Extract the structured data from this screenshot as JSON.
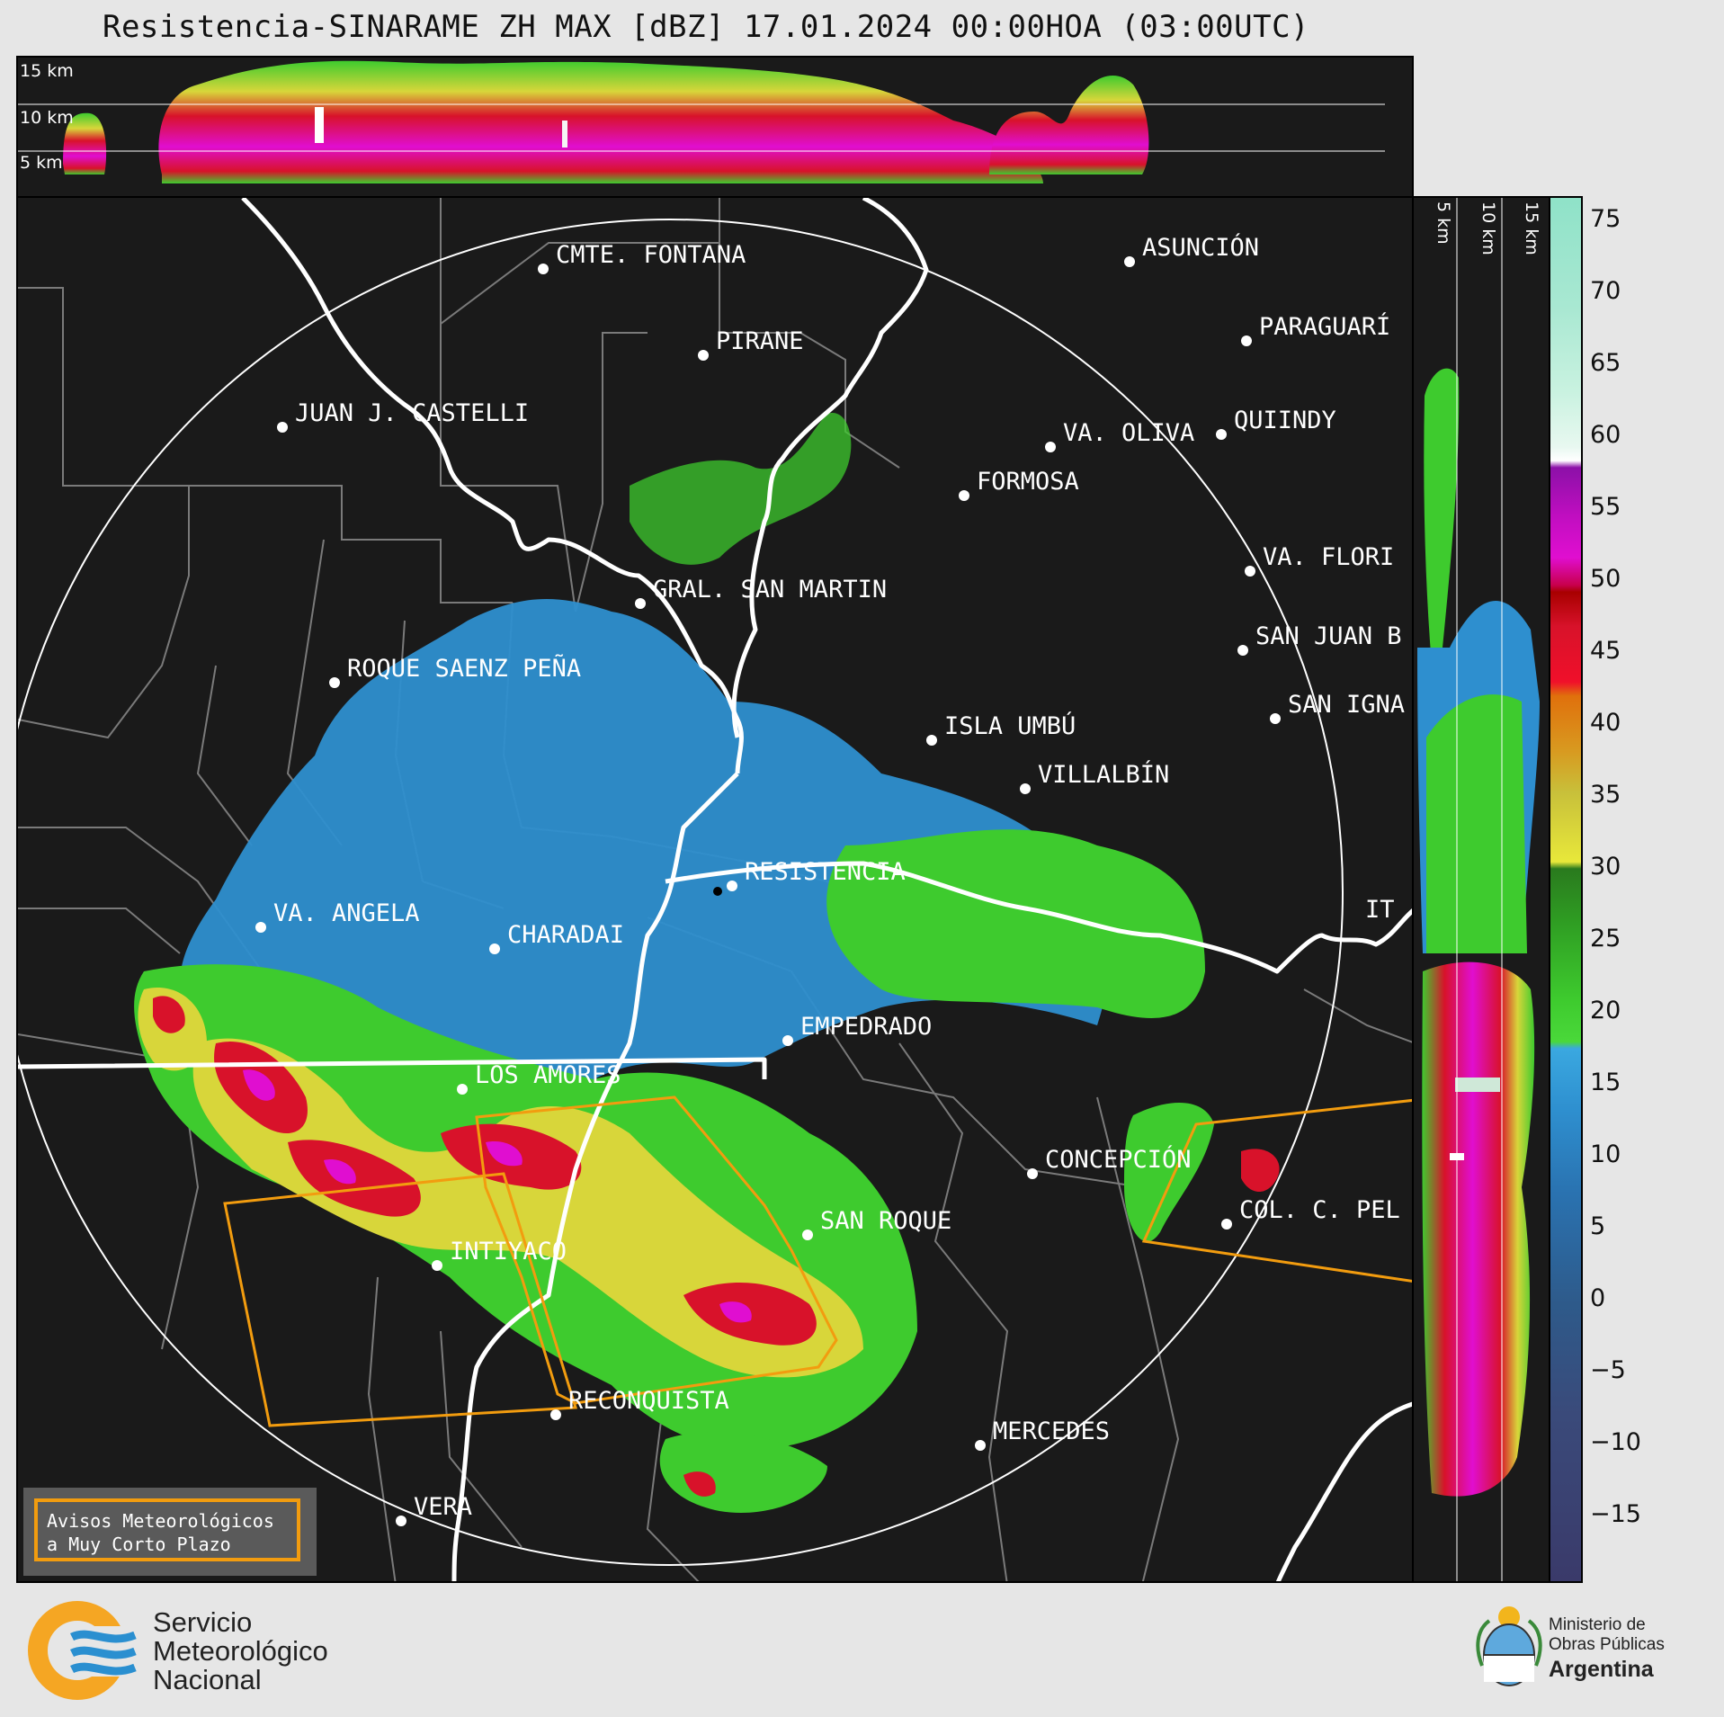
{
  "title": "Resistencia-SINARAME ZH MAX [dBZ] 17.01.2024 00:00HOA (03:00UTC)",
  "top_profile": {
    "height_labels": [
      "15 km",
      "10 km",
      "5 km"
    ]
  },
  "side_profile": {
    "height_labels": [
      "5 km",
      "10 km",
      "15 km"
    ]
  },
  "colorbar": {
    "ticks": [
      "75",
      "70",
      "65",
      "60",
      "55",
      "50",
      "45",
      "40",
      "35",
      "30",
      "25",
      "20",
      "15",
      "10",
      "5",
      "0",
      "−5",
      "−10",
      "−15"
    ]
  },
  "cities": [
    {
      "name": "CMTE. FONTANA",
      "emphasis": false
    },
    {
      "name": "ASUNCIÓN",
      "emphasis": false
    },
    {
      "name": "PARAGUARÍ",
      "emphasis": false
    },
    {
      "name": "PIRANE",
      "emphasis": false
    },
    {
      "name": "JUAN J. CASTELLI",
      "emphasis": false
    },
    {
      "name": "VA. OLIVA",
      "emphasis": false
    },
    {
      "name": "QUIINDY",
      "emphasis": false
    },
    {
      "name": "FORMOSA",
      "emphasis": false
    },
    {
      "name": "VA. FLORI",
      "emphasis": false
    },
    {
      "name": "GRAL. SAN MARTIN",
      "emphasis": false
    },
    {
      "name": "SAN JUAN B",
      "emphasis": false
    },
    {
      "name": "ROQUE SAENZ PEÑA",
      "emphasis": false
    },
    {
      "name": "SAN IGNA",
      "emphasis": false
    },
    {
      "name": "ISLA UMBÚ",
      "emphasis": false
    },
    {
      "name": "VILLALBÍN",
      "emphasis": false
    },
    {
      "name": "RESISTENCIA",
      "emphasis": true
    },
    {
      "name": "VA. ANGELA",
      "emphasis": false
    },
    {
      "name": "CHARADAI",
      "emphasis": false
    },
    {
      "name": "IT",
      "emphasis": false
    },
    {
      "name": "EMPEDRADO",
      "emphasis": false
    },
    {
      "name": "LOS AMORES",
      "emphasis": false
    },
    {
      "name": "CONCEPCIÓN",
      "emphasis": false
    },
    {
      "name": "SAN ROQUE",
      "emphasis": false
    },
    {
      "name": "INTIYACO",
      "emphasis": false
    },
    {
      "name": "COL. C. PEL",
      "emphasis": false
    },
    {
      "name": "RECONQUISTA",
      "emphasis": false
    },
    {
      "name": "MERCEDES",
      "emphasis": false
    },
    {
      "name": "VERA",
      "emphasis": false
    }
  ],
  "warning_box": {
    "line1": "Avisos Meteorológicos",
    "line2": "a Muy Corto Plazo"
  },
  "logo_smn": {
    "line1": "Servicio",
    "line2": "Meteorológico",
    "line3": "Nacional"
  },
  "logo_ministry": {
    "line1": "Ministerio de",
    "line2": "Obras Públicas",
    "line3": "Argentina"
  },
  "colors": {
    "background": "#1a1a1a",
    "light_blue": "#2e8fcf",
    "green": "#3ecb2e",
    "yellow": "#d8d63a",
    "red": "#d8122a",
    "magenta": "#e00ed0",
    "warning_orange": "#f29c0f"
  }
}
